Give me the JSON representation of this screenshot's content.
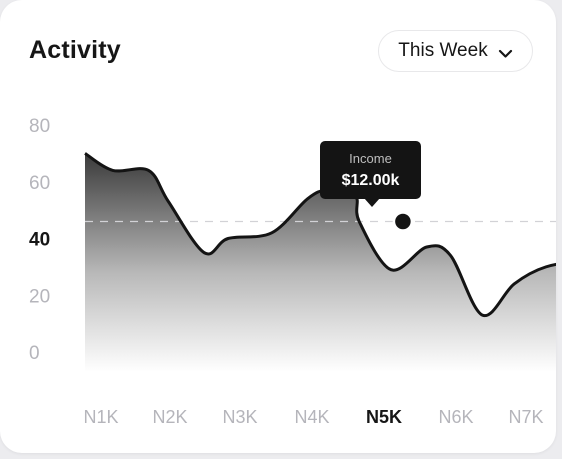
{
  "card": {
    "title": "Activity"
  },
  "filter": {
    "selected": "This Week"
  },
  "tooltip": {
    "label": "Income",
    "value": "$12.00k"
  },
  "chart_data": {
    "type": "area",
    "title": "Activity",
    "xlabel": "",
    "ylabel": "",
    "categories": [
      "N1K",
      "N2K",
      "N3K",
      "N4K",
      "N5K",
      "N6K",
      "N7K"
    ],
    "highlight_category": "N5K",
    "highlight_y_tick": 40,
    "ylim": [
      0,
      80
    ],
    "yticks": [
      0,
      20,
      40,
      60,
      80
    ],
    "x": [
      0,
      0.35,
      0.8,
      1.05,
      1.5,
      1.8,
      2.35,
      2.8,
      3.05,
      3.4,
      3.45,
      3.85,
      4.3,
      4.6,
      5.0,
      5.4,
      5.8,
      6.2,
      6.55
    ],
    "y": [
      70,
      64,
      64,
      53,
      35,
      40,
      42,
      54,
      57,
      55,
      46,
      29,
      37,
      34,
      13,
      24,
      30,
      31,
      26
    ],
    "reference_line_y": 46,
    "highlight_point": {
      "x": 4.0,
      "y": 46
    },
    "series_color": "#141414",
    "grid": false
  }
}
